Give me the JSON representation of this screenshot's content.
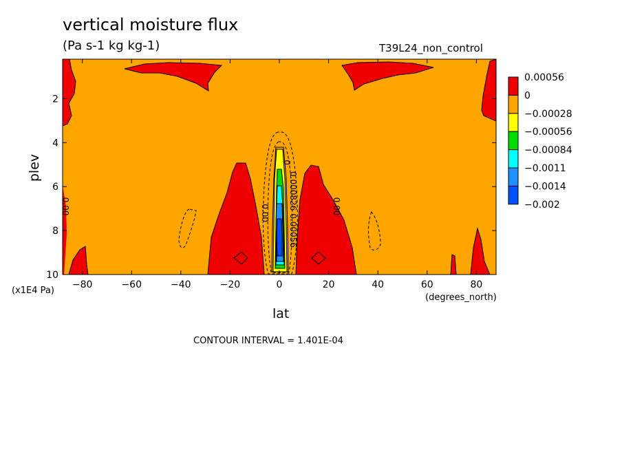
{
  "chart_data": {
    "type": "heatmap",
    "title": "vertical moisture flux",
    "units": "(Pa s-1 kg kg-1)",
    "run_id": "T39L24_non_control",
    "xlabel": "lat",
    "x_unit": "(degrees_north)",
    "ylabel": "plev",
    "y_unit": "(x1E4 Pa)",
    "xlim": [
      -88,
      88
    ],
    "ylim": [
      10,
      0.2
    ],
    "x_ticks": [
      -80,
      -60,
      -40,
      -20,
      0,
      20,
      40,
      60,
      80
    ],
    "y_ticks": [
      2,
      4,
      6,
      8,
      10
    ],
    "contour_interval": "CONTOUR INTERVAL = 1.401E-04",
    "colorbar": {
      "labels": [
        "0.00056",
        "0",
        "−0.00028",
        "−0.00056",
        "−0.00084",
        "−0.0011",
        "−0.0014",
        "−0.002"
      ],
      "colors": [
        "#ee0000",
        "#ffa500",
        "#ffff00",
        "#00dd00",
        "#00ffff",
        "#1e90ff",
        "#0050ff"
      ]
    },
    "contour_labels": [
      {
        "text": "0.00",
        "lat": -88,
        "plev": 6.9
      },
      {
        "text": "0.00",
        "lat": -7,
        "plev": 7.2
      },
      {
        "text": "0.00",
        "lat": 22,
        "plev": 6.9
      },
      {
        "text": "0",
        "lat": 2,
        "plev": 4.9
      },
      {
        "text": "0.000826",
        "lat": 4.5,
        "plev": 6.2
      },
      {
        "text": "0.00056",
        "lat": 4.5,
        "plev": 8.0
      }
    ]
  }
}
